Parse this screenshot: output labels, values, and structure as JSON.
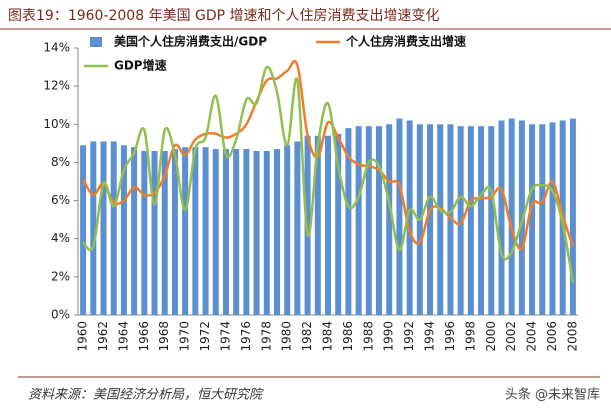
{
  "chart_data": {
    "type": "bar-line",
    "title": "图表19：1960-2008 年美国 GDP 增速和个人住房消费支出增速变化",
    "source": "资料来源：美国经济分析局，恒大研究院",
    "watermark": "头条 @未来智库",
    "categories": [
      "1960",
      null,
      "1962",
      null,
      "1964",
      null,
      "1966",
      null,
      "1968",
      null,
      "1970",
      null,
      "1972",
      null,
      "1974",
      null,
      "1976",
      null,
      "1978",
      null,
      "1980",
      null,
      "1982",
      null,
      "1984",
      null,
      "1986",
      null,
      "1988",
      null,
      "1990",
      null,
      "1992",
      null,
      "1994",
      null,
      "1996",
      null,
      "1998",
      null,
      "2000",
      null,
      "2002",
      null,
      "2004",
      null,
      "2006",
      null,
      "2008"
    ],
    "series": [
      {
        "name": "美国个人住房消费支出/GDP",
        "kind": "bar",
        "color": "#5b8fd0",
        "values": [
          8.9,
          9.1,
          9.1,
          9.1,
          8.9,
          8.8,
          8.6,
          8.6,
          8.6,
          8.7,
          8.8,
          8.8,
          8.8,
          8.7,
          8.7,
          8.7,
          8.7,
          8.6,
          8.6,
          8.7,
          8.9,
          9.1,
          9.4,
          9.4,
          9.4,
          9.5,
          9.8,
          9.9,
          9.9,
          9.9,
          10.0,
          10.3,
          10.2,
          10.0,
          10.0,
          10.0,
          10.0,
          9.9,
          9.9,
          9.9,
          9.9,
          10.2,
          10.3,
          10.2,
          10.0,
          10.0,
          10.1,
          10.2,
          10.3
        ]
      },
      {
        "name": "个人住房消费支出增速",
        "kind": "line",
        "color": "#f07d2a",
        "values": [
          7.1,
          6.3,
          6.9,
          5.9,
          6.0,
          6.7,
          6.3,
          6.4,
          7.3,
          8.9,
          8.4,
          9.2,
          9.5,
          9.5,
          9.3,
          9.5,
          10.0,
          11.2,
          12.3,
          12.4,
          12.8,
          13.1,
          9.4,
          8.3,
          10.1,
          9.3,
          8.3,
          7.9,
          7.8,
          7.6,
          7.0,
          6.8,
          4.4,
          3.8,
          5.5,
          5.6,
          5.1,
          4.8,
          6.0,
          6.1,
          6.2,
          6.6,
          4.5,
          3.5,
          5.8,
          5.9,
          7.0,
          5.2,
          3.6
        ]
      },
      {
        "name": "GDP增速",
        "kind": "line",
        "color": "#92c050",
        "values": [
          3.8,
          3.6,
          6.9,
          5.7,
          7.6,
          8.5,
          9.7,
          5.8,
          9.7,
          8.4,
          5.5,
          8.7,
          9.3,
          11.5,
          8.4,
          9.2,
          11.3,
          11.1,
          13.0,
          11.7,
          8.9,
          12.3,
          4.2,
          8.9,
          11.1,
          7.8,
          5.7,
          6.2,
          8.0,
          7.8,
          5.9,
          3.4,
          5.5,
          5.0,
          6.2,
          5.5,
          5.4,
          6.2,
          5.7,
          6.3,
          6.5,
          3.2,
          3.3,
          4.9,
          6.6,
          6.8,
          6.5,
          4.8,
          1.7
        ]
      }
    ],
    "ylim": [
      0,
      14
    ],
    "yticks": [
      {
        "value": 0,
        "label": "0%"
      },
      {
        "value": 2,
        "label": "2%"
      },
      {
        "value": 4,
        "label": "4%"
      },
      {
        "value": 6,
        "label": "6%"
      },
      {
        "value": 8,
        "label": "8%"
      },
      {
        "value": 10,
        "label": "10%"
      },
      {
        "value": 12,
        "label": "12%"
      },
      {
        "value": 14,
        "label": "14%"
      }
    ]
  }
}
